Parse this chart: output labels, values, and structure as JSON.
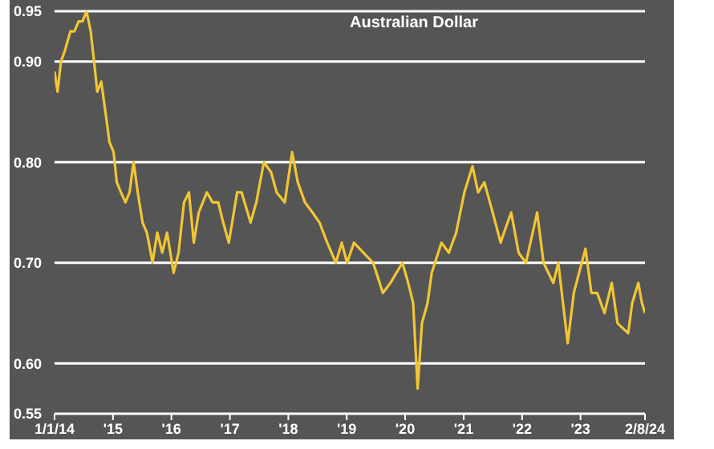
{
  "chart_data": {
    "type": "line",
    "title": "Australian Dollar",
    "x": [
      "2014-01-01",
      "2014-01-20",
      "2014-02-10",
      "2014-03-05",
      "2014-04-10",
      "2014-05-05",
      "2014-06-01",
      "2014-06-25",
      "2014-07-20",
      "2014-08-15",
      "2014-09-05",
      "2014-09-25",
      "2014-10-20",
      "2014-11-15",
      "2014-12-10",
      "2015-01-05",
      "2015-01-25",
      "2015-02-20",
      "2015-03-20",
      "2015-04-15",
      "2015-05-10",
      "2015-06-05",
      "2015-07-05",
      "2015-08-01",
      "2015-08-25",
      "2015-09-05",
      "2015-10-05",
      "2015-11-05",
      "2015-12-05",
      "2016-01-15",
      "2016-02-15",
      "2016-03-20",
      "2016-04-20",
      "2016-05-20",
      "2016-06-20",
      "2016-08-10",
      "2016-09-15",
      "2016-10-20",
      "2016-11-20",
      "2016-12-25",
      "2017-02-15",
      "2017-03-15",
      "2017-05-10",
      "2017-06-15",
      "2017-08-01",
      "2017-09-15",
      "2017-10-20",
      "2017-12-10",
      "2018-01-25",
      "2018-03-01",
      "2018-04-15",
      "2018-06-01",
      "2018-07-15",
      "2018-09-01",
      "2018-10-25",
      "2018-12-01",
      "2019-01-03",
      "2019-02-15",
      "2019-04-15",
      "2019-06-15",
      "2019-08-15",
      "2019-10-01",
      "2019-12-15",
      "2020-01-20",
      "2020-02-20",
      "2020-03-19",
      "2020-04-15",
      "2020-05-20",
      "2020-06-15",
      "2020-08-15",
      "2020-09-30",
      "2020-11-15",
      "2021-01-05",
      "2021-02-25",
      "2021-04-01",
      "2021-05-10",
      "2021-07-01",
      "2021-08-20",
      "2021-09-10",
      "2021-10-25",
      "2021-12-10",
      "2022-01-25",
      "2022-04-05",
      "2022-05-15",
      "2022-07-15",
      "2022-08-15",
      "2022-10-13",
      "2022-11-20",
      "2023-02-01",
      "2023-03-10",
      "2023-04-15",
      "2023-05-31",
      "2023-07-15",
      "2023-08-20",
      "2023-10-26",
      "2023-11-20",
      "2023-12-28",
      "2024-01-20",
      "2024-02-08"
    ],
    "series": [
      {
        "color": "#f2c633",
        "values": [
          0.89,
          0.87,
          0.9,
          0.91,
          0.93,
          0.93,
          0.94,
          0.94,
          0.95,
          0.93,
          0.9,
          0.87,
          0.88,
          0.85,
          0.82,
          0.81,
          0.78,
          0.77,
          0.76,
          0.77,
          0.8,
          0.77,
          0.74,
          0.73,
          0.71,
          0.7,
          0.73,
          0.71,
          0.73,
          0.69,
          0.71,
          0.76,
          0.77,
          0.72,
          0.75,
          0.77,
          0.76,
          0.76,
          0.74,
          0.72,
          0.77,
          0.77,
          0.74,
          0.76,
          0.8,
          0.79,
          0.77,
          0.76,
          0.81,
          0.78,
          0.76,
          0.75,
          0.74,
          0.72,
          0.7,
          0.72,
          0.7,
          0.72,
          0.71,
          0.7,
          0.67,
          0.68,
          0.7,
          0.68,
          0.66,
          0.575,
          0.64,
          0.66,
          0.69,
          0.72,
          0.71,
          0.73,
          0.77,
          0.796,
          0.77,
          0.78,
          0.75,
          0.72,
          0.73,
          0.75,
          0.71,
          0.7,
          0.75,
          0.7,
          0.68,
          0.7,
          0.62,
          0.67,
          0.714,
          0.67,
          0.67,
          0.65,
          0.68,
          0.64,
          0.63,
          0.66,
          0.68,
          0.66,
          0.65
        ]
      }
    ],
    "ylim": [
      0.55,
      0.95
    ],
    "yticks": [
      {
        "value": 0.55,
        "label": "0.55"
      },
      {
        "value": 0.6,
        "label": "0.60"
      },
      {
        "value": 0.7,
        "label": "0.70"
      },
      {
        "value": 0.8,
        "label": "0.80"
      },
      {
        "value": 0.9,
        "label": "0.90"
      },
      {
        "value": 0.95,
        "label": "0.95"
      }
    ],
    "xlim": [
      "2014-01-01",
      "2024-02-08"
    ],
    "xticks": [
      {
        "value": "2014-01-01",
        "label": "1/1/14"
      },
      {
        "value": "2015-01-01",
        "label": "'15"
      },
      {
        "value": "2016-01-01",
        "label": "'16"
      },
      {
        "value": "2017-01-01",
        "label": "'17"
      },
      {
        "value": "2018-01-01",
        "label": "'18"
      },
      {
        "value": "2019-01-01",
        "label": "'19"
      },
      {
        "value": "2020-01-01",
        "label": "'20"
      },
      {
        "value": "2021-01-01",
        "label": "'21"
      },
      {
        "value": "2022-01-01",
        "label": "'22"
      },
      {
        "value": "2023-01-01",
        "label": "'23"
      },
      {
        "value": "2024-02-08",
        "label": "2/8/24"
      }
    ],
    "grid": "y",
    "legend": false,
    "marker": "none",
    "line_style": "solid"
  }
}
